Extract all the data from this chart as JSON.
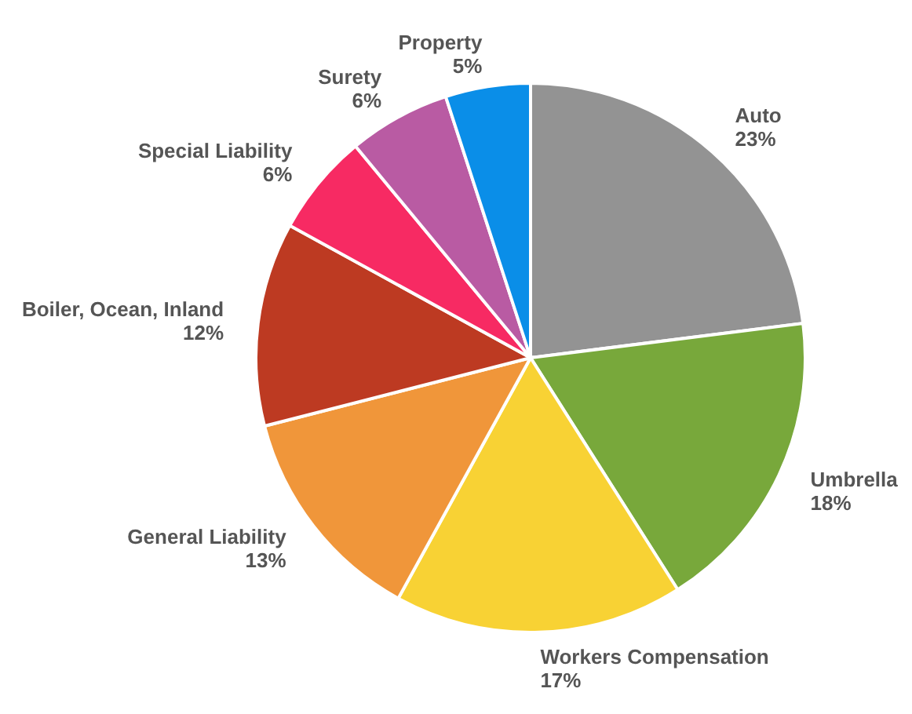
{
  "chart_data": {
    "type": "pie",
    "categories": [
      "Auto",
      "Umbrella",
      "Workers Compensation",
      "General Liability",
      "Boiler, Ocean, Inland",
      "Special Liability",
      "Surety",
      "Property"
    ],
    "values": [
      23,
      18,
      17,
      13,
      12,
      6,
      6,
      5
    ],
    "value_labels": [
      "23%",
      "18%",
      "17%",
      "13%",
      "12%",
      "6%",
      "6%",
      "5%"
    ],
    "colors": [
      "#939393",
      "#78a83b",
      "#f8d234",
      "#f0963a",
      "#bd3a22",
      "#f72a63",
      "#b95ba3",
      "#0a8ee8"
    ],
    "legend": false
  }
}
